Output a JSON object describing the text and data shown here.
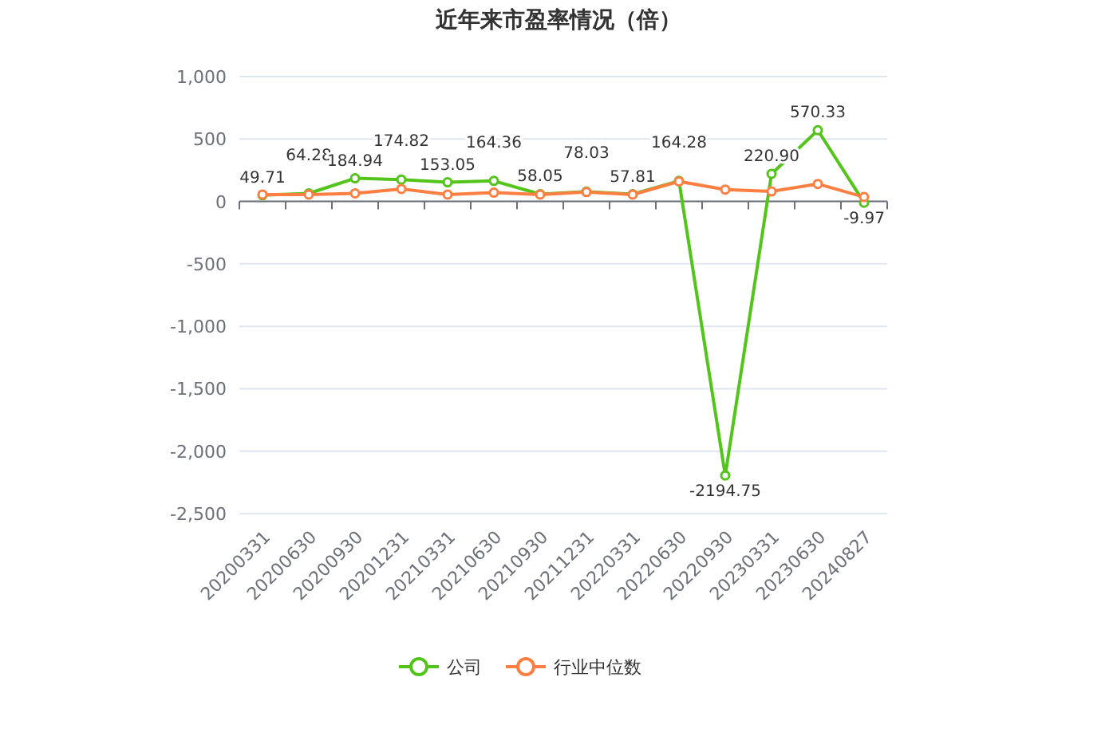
{
  "chart_data": {
    "type": "line",
    "title": "近年来市盈率情况（倍）",
    "categories": [
      "20200331",
      "20200630",
      "20200930",
      "20201231",
      "20210331",
      "20210630",
      "20210930",
      "20211231",
      "20220331",
      "20220630",
      "20220930",
      "20230331",
      "20230630",
      "20240827"
    ],
    "series": [
      {
        "name": "公司",
        "color": "#52c41a",
        "values": [
          49.71,
          64.28,
          184.94,
          174.82,
          153.05,
          164.36,
          58.05,
          78.03,
          57.81,
          164.28,
          -2194.75,
          220.9,
          570.33,
          -9.97
        ],
        "value_labels": [
          "49.71",
          "64.28",
          "184.94",
          "174.82",
          "153.05",
          "164.36",
          "58.05",
          "78.03",
          "57.81",
          "164.28",
          "-2194.75",
          "220.90",
          "570.33",
          "-9.97"
        ]
      },
      {
        "name": "行业中位数",
        "color": "#ff7f42",
        "values": [
          55,
          55,
          65,
          100,
          55,
          70,
          55,
          75,
          55,
          160,
          95,
          80,
          140,
          35
        ]
      }
    ],
    "ylim": [
      -2500,
      1000
    ],
    "yticks": [
      {
        "value": 1000,
        "label": "1,000"
      },
      500,
      0,
      -500,
      {
        "value": -1000,
        "label": "-1,000"
      },
      {
        "value": -1500,
        "label": "-1,500"
      },
      {
        "value": -2000,
        "label": "-2,000"
      },
      {
        "value": -2500,
        "label": "-2,500"
      }
    ],
    "grid": "y",
    "legend": "bottom",
    "marker": "circle",
    "line_style": "solid"
  }
}
